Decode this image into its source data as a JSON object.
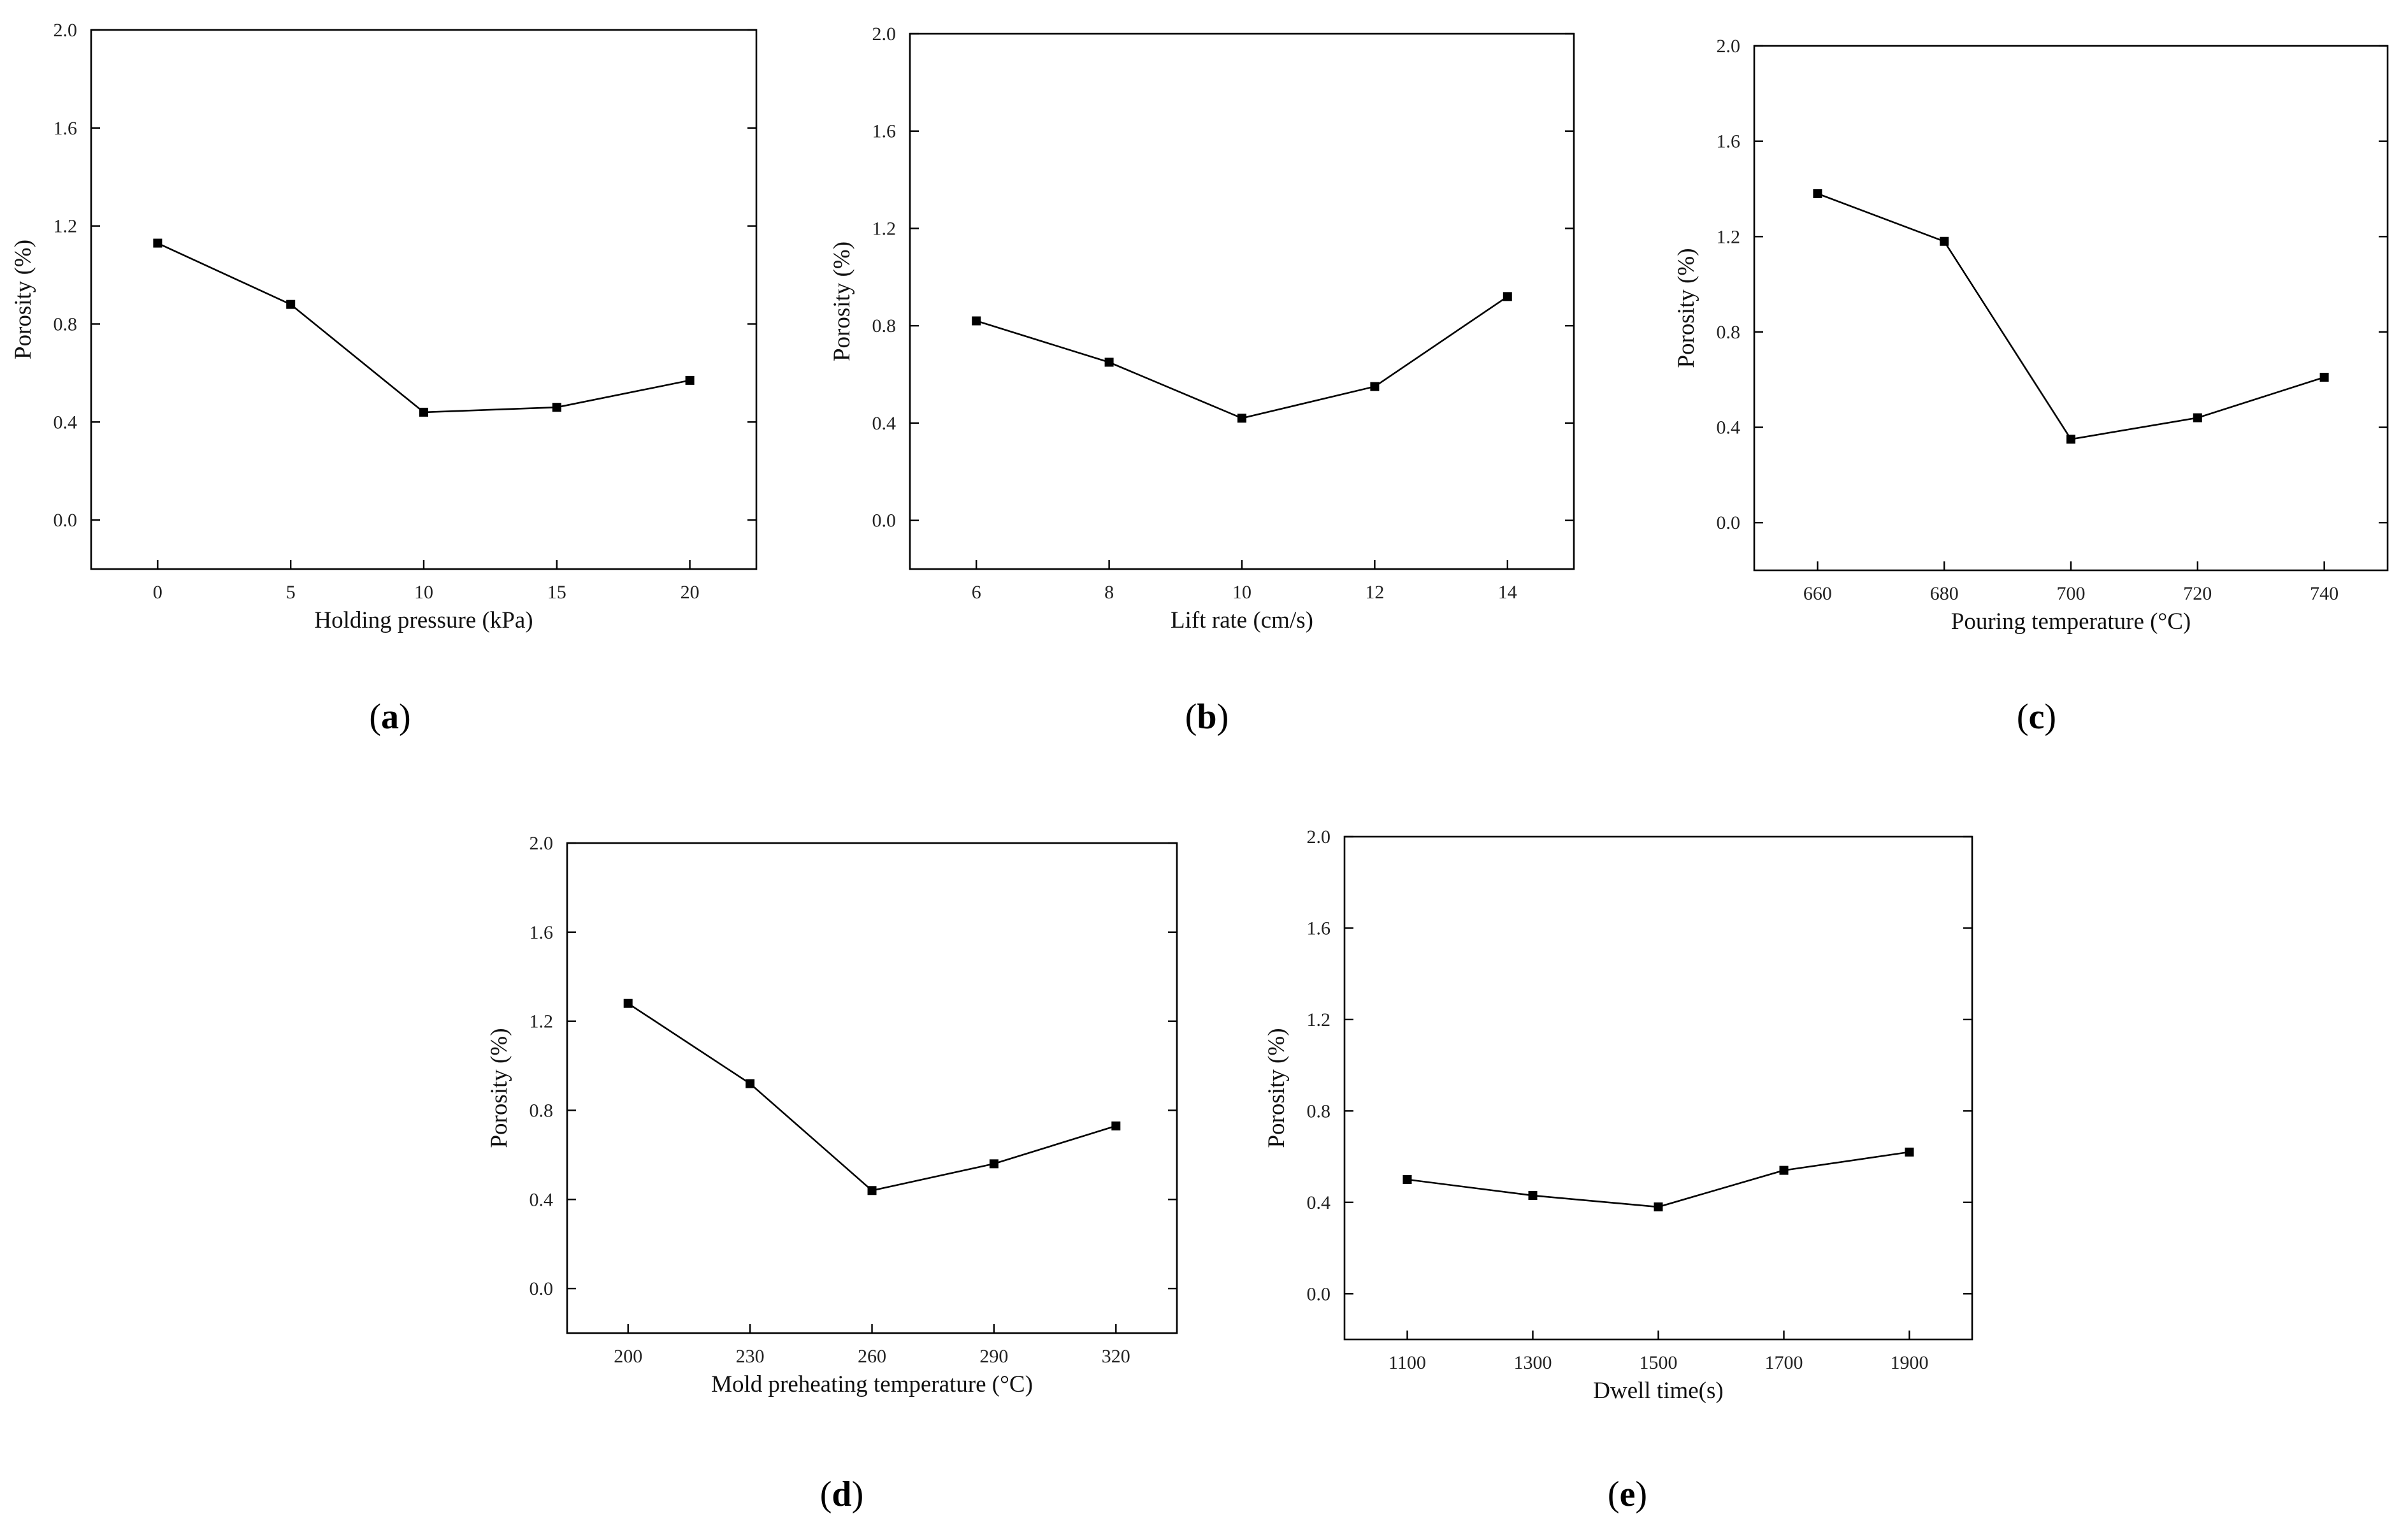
{
  "chart_data": [
    {
      "id": "a",
      "type": "line",
      "panel_label": "a",
      "xlabel": "Holding pressure (kPa)",
      "ylabel": "Porosity (%)",
      "x_ticks": [
        "0",
        "5",
        "10",
        "15",
        "20"
      ],
      "y_ticks": [
        "0.0",
        "0.4",
        "0.8",
        "1.2",
        "1.6",
        "2.0"
      ],
      "xlim": [
        -2.5,
        22.5
      ],
      "ylim": [
        -0.2,
        2.0
      ],
      "x": [
        0,
        5,
        10,
        15,
        20
      ],
      "y": [
        1.13,
        0.88,
        0.44,
        0.46,
        0.57
      ]
    },
    {
      "id": "b",
      "type": "line",
      "panel_label": "b",
      "xlabel": "Lift rate (cm/s)",
      "ylabel": "Porosity (%)",
      "x_ticks": [
        "6",
        "8",
        "10",
        "12",
        "14"
      ],
      "y_ticks": [
        "0.0",
        "0.4",
        "0.8",
        "1.2",
        "1.6",
        "2.0"
      ],
      "xlim": [
        5.0,
        15.0
      ],
      "ylim": [
        -0.2,
        2.0
      ],
      "x": [
        6,
        8,
        10,
        12,
        14
      ],
      "y": [
        0.82,
        0.65,
        0.42,
        0.55,
        0.92
      ]
    },
    {
      "id": "c",
      "type": "line",
      "panel_label": "c",
      "xlabel": "Pouring temperature (°C)",
      "ylabel": "Porosity (%)",
      "x_ticks": [
        "660",
        "680",
        "700",
        "720",
        "740"
      ],
      "y_ticks": [
        "0.0",
        "0.4",
        "0.8",
        "1.2",
        "1.6",
        "2.0"
      ],
      "xlim": [
        650,
        750
      ],
      "ylim": [
        -0.2,
        2.0
      ],
      "x": [
        660,
        680,
        700,
        720,
        740
      ],
      "y": [
        1.38,
        1.18,
        0.35,
        0.44,
        0.61
      ]
    },
    {
      "id": "d",
      "type": "line",
      "panel_label": "d",
      "xlabel": "Mold preheating temperature (°C)",
      "ylabel": "Porosity (%)",
      "x_ticks": [
        "200",
        "230",
        "260",
        "290",
        "320"
      ],
      "y_ticks": [
        "0.0",
        "0.4",
        "0.8",
        "1.2",
        "1.6",
        "2.0"
      ],
      "xlim": [
        185,
        335
      ],
      "ylim": [
        -0.2,
        2.0
      ],
      "x": [
        200,
        230,
        260,
        290,
        320
      ],
      "y": [
        1.28,
        0.92,
        0.44,
        0.56,
        0.73
      ]
    },
    {
      "id": "e",
      "type": "line",
      "panel_label": "e",
      "xlabel": "Dwell time(s)",
      "ylabel": "Porosity (%)",
      "x_ticks": [
        "1100",
        "1300",
        "1500",
        "1700",
        "1900"
      ],
      "y_ticks": [
        "0.0",
        "0.4",
        "0.8",
        "1.2",
        "1.6",
        "2.0"
      ],
      "xlim": [
        1000,
        2000
      ],
      "ylim": [
        -0.2,
        2.0
      ],
      "x": [
        1100,
        1300,
        1500,
        1700,
        1900
      ],
      "y": [
        0.5,
        0.43,
        0.38,
        0.54,
        0.62
      ]
    }
  ]
}
